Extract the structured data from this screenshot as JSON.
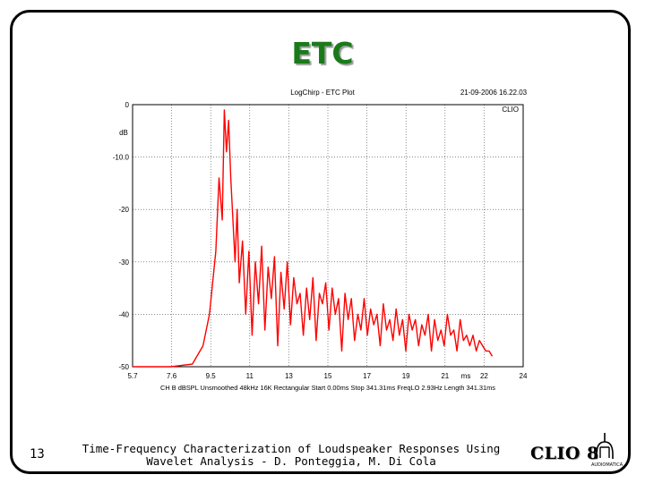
{
  "slide": {
    "title": "ETC",
    "page_number": "13",
    "footer_line1": "Time-Frequency Characterization of Loudspeaker Responses Using",
    "footer_line2": "Wavelet Analysis - D. Ponteggia, M. Di Cola",
    "logo_text": "CLIO 8",
    "logo_small": "AUDIOMATICA"
  },
  "chart_data": {
    "type": "line",
    "title": "LogChirp - ETC Plot",
    "date": "21-09-2006 16.22.03",
    "brand": "CLIO",
    "ylabel": "dB",
    "xlabel": "ms",
    "xlim": [
      5.7,
      24
    ],
    "ylim": [
      -50,
      0
    ],
    "x_ticks": [
      "5.7",
      "7.6",
      "9.5",
      "11",
      "13",
      "15",
      "17",
      "19",
      "21",
      "22",
      "24"
    ],
    "y_ticks": [
      "0",
      "-10.0",
      "-20",
      "-30",
      "-40",
      "-50"
    ],
    "grid": true,
    "status_items": [
      "CH B",
      "dBSPL",
      "Unsmoothed",
      "48kHz",
      "16K",
      "Rectangular",
      "Start 0.00ms",
      "Stop 341.31ms",
      "FreqLO 2.93Hz",
      "Length 341.31ms"
    ],
    "series": [
      {
        "color": "#ff0000",
        "x": [
          5.7,
          6.5,
          7.5,
          8.5,
          9.0,
          9.3,
          9.6,
          9.75,
          9.9,
          10.0,
          10.1,
          10.2,
          10.3,
          10.4,
          10.5,
          10.6,
          10.7,
          10.85,
          11.0,
          11.15,
          11.3,
          11.45,
          11.6,
          11.75,
          11.9,
          12.05,
          12.2,
          12.35,
          12.5,
          12.65,
          12.8,
          12.95,
          13.1,
          13.25,
          13.4,
          13.55,
          13.7,
          13.85,
          14.0,
          14.15,
          14.3,
          14.45,
          14.6,
          14.75,
          14.9,
          15.05,
          15.2,
          15.35,
          15.5,
          15.65,
          15.8,
          15.95,
          16.1,
          16.25,
          16.4,
          16.55,
          16.7,
          16.85,
          17.0,
          17.15,
          17.3,
          17.45,
          17.6,
          17.75,
          17.9,
          18.05,
          18.2,
          18.35,
          18.5,
          18.65,
          18.8,
          18.95,
          19.1,
          19.25,
          19.4,
          19.55,
          19.7,
          19.85,
          20.0,
          20.15,
          20.3,
          20.45,
          20.6,
          20.75,
          20.9,
          21.05,
          21.2,
          21.35,
          21.5,
          21.65,
          21.8,
          21.95,
          22.1,
          22.25,
          22.4,
          22.55
        ],
        "y": [
          -50,
          -50,
          -50,
          -49.5,
          -46,
          -40,
          -28,
          -14,
          -22,
          -1,
          -9,
          -3,
          -14,
          -22,
          -30,
          -20,
          -34,
          -26,
          -40,
          -28,
          -44,
          -30,
          -38,
          -27,
          -43,
          -31,
          -37,
          -29,
          -46,
          -32,
          -39,
          -30,
          -42,
          -33,
          -38,
          -36,
          -44,
          -35,
          -41,
          -33,
          -45,
          -36,
          -38,
          -34,
          -43,
          -35,
          -40,
          -37,
          -47,
          -36,
          -41,
          -37,
          -45,
          -40,
          -43,
          -37,
          -44,
          -39,
          -42,
          -40,
          -46,
          -38,
          -43,
          -41,
          -45,
          -39,
          -44,
          -41,
          -47,
          -40,
          -43,
          -41,
          -46,
          -42,
          -44,
          -40,
          -47,
          -41,
          -45,
          -43,
          -46,
          -40,
          -44,
          -43,
          -47,
          -41,
          -45,
          -44,
          -46,
          -44,
          -47,
          -45,
          -46,
          -47,
          -47,
          -48
        ]
      }
    ]
  }
}
